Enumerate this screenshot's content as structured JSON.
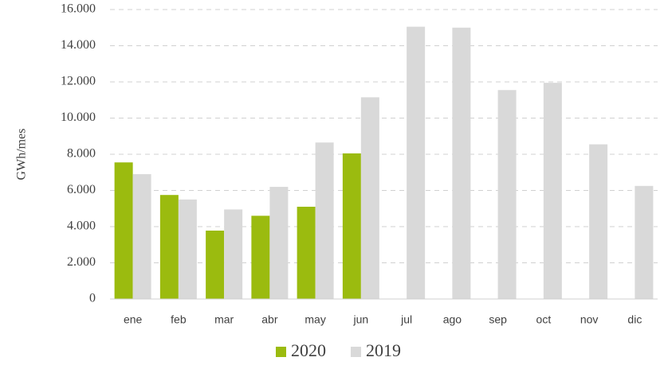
{
  "chart_data": {
    "type": "bar",
    "y_label": "GWh/mes",
    "categories": [
      "ene",
      "feb",
      "mar",
      "abr",
      "may",
      "jun",
      "jul",
      "ago",
      "sep",
      "oct",
      "nov",
      "dic"
    ],
    "series": [
      {
        "name": "2020",
        "color": "#9bbb0f",
        "values": [
          7550,
          5750,
          3780,
          4600,
          5100,
          8050,
          null,
          null,
          null,
          null,
          null,
          null
        ]
      },
      {
        "name": "2019",
        "color": "#d9d9d9",
        "values": [
          6900,
          5500,
          4950,
          6200,
          8650,
          11150,
          15050,
          15000,
          11550,
          11950,
          8550,
          6250
        ]
      }
    ],
    "ylim": [
      0,
      16000
    ],
    "yticks": [
      0,
      {
        "value": 2000,
        "label": "2.000"
      },
      {
        "value": 4000,
        "label": "4.000"
      },
      {
        "value": 6000,
        "label": "6.000"
      },
      {
        "value": 8000,
        "label": "8.000"
      },
      {
        "value": 10000,
        "label": "10.000"
      },
      {
        "value": 12000,
        "label": "12.000"
      },
      {
        "value": 14000,
        "label": "14.000"
      },
      {
        "value": 16000,
        "label": "16.000"
      }
    ],
    "grid": true,
    "legend": "bottom"
  }
}
